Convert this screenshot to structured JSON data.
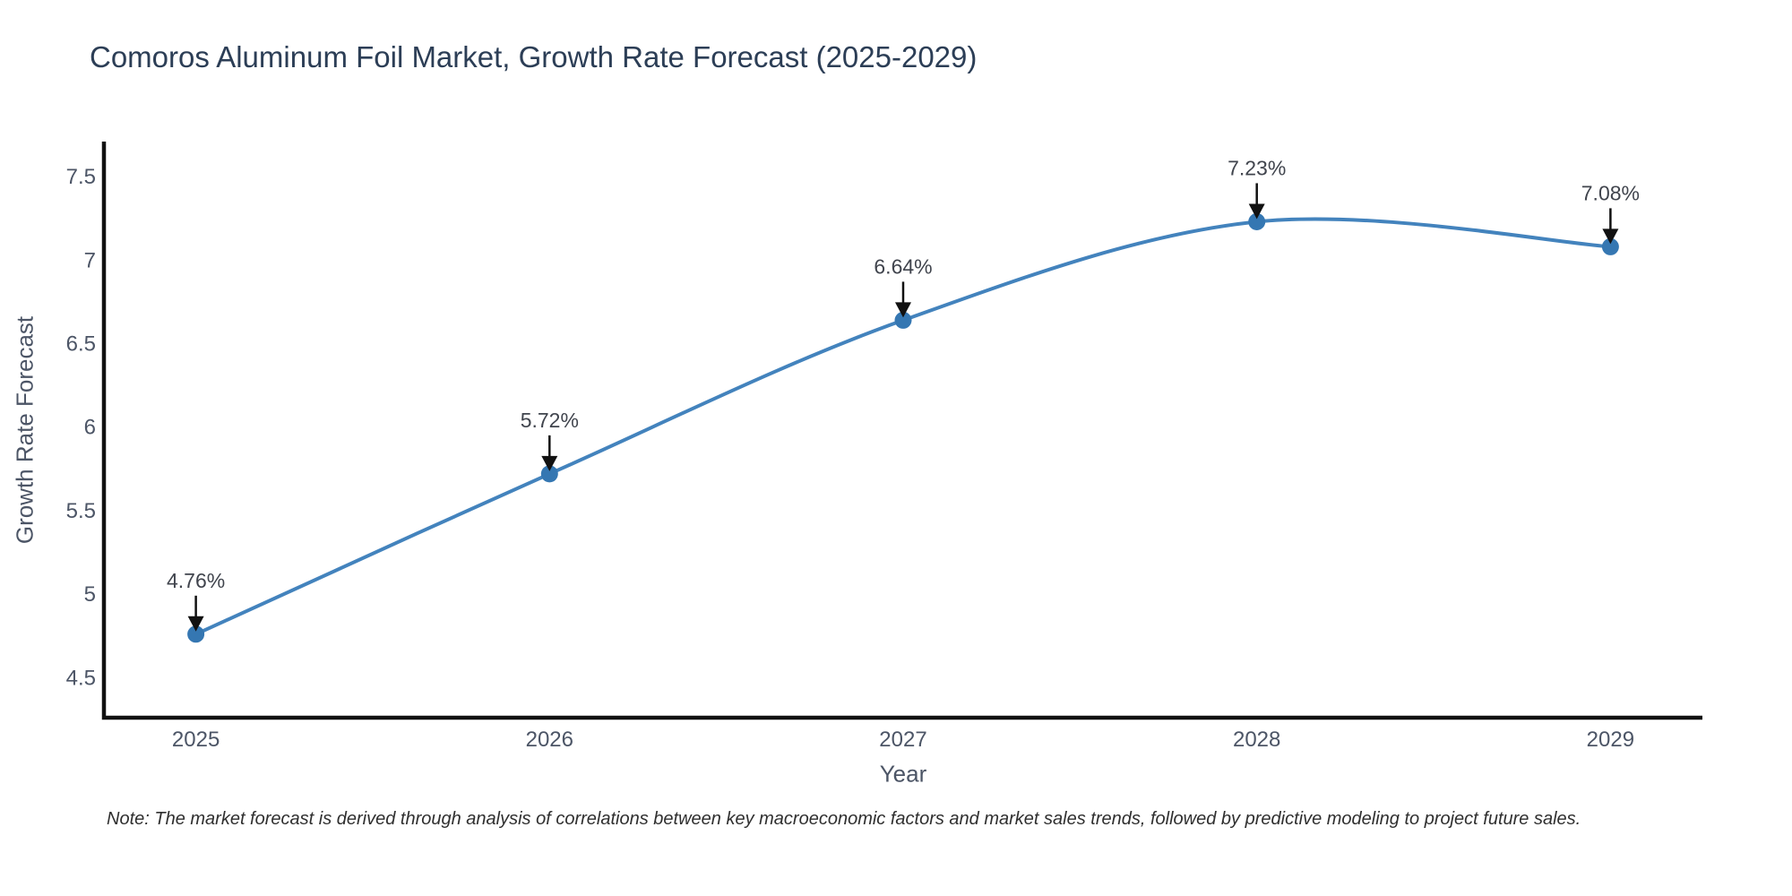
{
  "title": "Comoros Aluminum Foil Market, Growth Rate Forecast (2025-2029)",
  "note": "Note: The market forecast is derived through analysis of correlations between key macroeconomic factors and market sales trends, followed by predictive modeling to project future sales.",
  "colors": {
    "background": "#ffffff",
    "line": "#4383bd",
    "marker": "#3577b2",
    "axis": "#111111",
    "arrow": "#111111",
    "title_text": "#2c3e56",
    "tick_text": "#4c5566",
    "annotation_text": "#40444d"
  },
  "chart_data": {
    "type": "line",
    "title": "Comoros Aluminum Foil Market, Growth Rate Forecast (2025-2029)",
    "xlabel": "Year",
    "ylabel": "Growth Rate Forecast",
    "x": [
      2025,
      2026,
      2027,
      2028,
      2029
    ],
    "y": [
      4.76,
      5.72,
      6.64,
      7.23,
      7.08
    ],
    "point_labels": [
      "4.76%",
      "5.72%",
      "6.64%",
      "7.23%",
      "7.08%"
    ],
    "series_name": "Growth Rate Forecast",
    "line_shape": "spline",
    "xticks": [
      "2025",
      "2026",
      "2027",
      "2028",
      "2029"
    ],
    "yticks": [
      "4.5",
      "5",
      "5.5",
      "6",
      "6.5",
      "7",
      "7.5"
    ],
    "ytick_values": [
      4.5,
      5,
      5.5,
      6,
      6.5,
      7,
      7.5
    ],
    "xlim": [
      2024.74,
      2029.26
    ],
    "ylim": [
      4.26,
      7.71
    ],
    "grid": false,
    "legend": false
  }
}
